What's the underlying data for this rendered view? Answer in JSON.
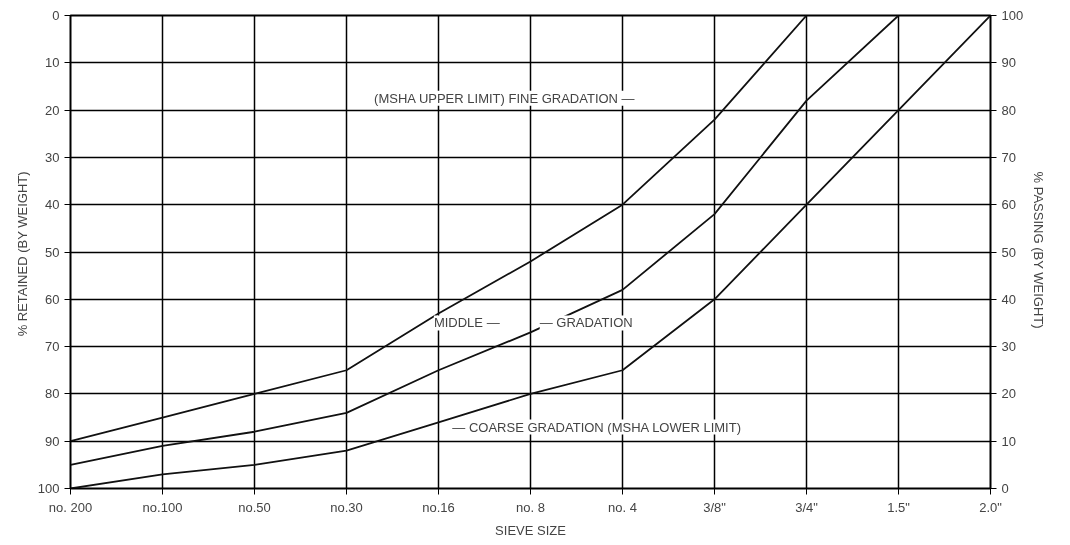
{
  "chart_data": {
    "type": "line",
    "xlabel": "SIEVE SIZE",
    "ylabel": "% RETAINED  (BY WEIGHT)",
    "y2label": "% PASSING  (BY WEIGHT)",
    "categories": [
      "no. 200",
      "no.100",
      "no.50",
      "no.30",
      "no.16",
      "no. 8",
      "no. 4",
      "3/8\"",
      "3/4\"",
      "1.5\"",
      "2.0\""
    ],
    "ylim": [
      100,
      0
    ],
    "yticks": [
      0,
      10,
      20,
      30,
      40,
      50,
      60,
      70,
      80,
      90,
      100
    ],
    "y2lim": [
      0,
      100
    ],
    "y2ticks": [
      0,
      10,
      20,
      30,
      40,
      50,
      60,
      70,
      80,
      90,
      100
    ],
    "series": [
      {
        "color": "#111111",
        "axis": "y2",
        "values": [
          10,
          15,
          20,
          25,
          37,
          48,
          60,
          78,
          100,
          null,
          null
        ]
      },
      {
        "color": "#111111",
        "axis": "y2",
        "values": [
          5,
          9,
          12,
          16,
          25,
          33,
          42,
          58,
          82,
          100,
          null
        ]
      },
      {
        "color": "#111111",
        "axis": "y2",
        "values": [
          0,
          3,
          5,
          8,
          14,
          20,
          25,
          40,
          60,
          80,
          100
        ]
      }
    ],
    "annotations": [
      "(MSHA UPPER LIMIT) FINE GRADATION —",
      "MIDDLE —",
      "— GRADATION",
      "— COARSE GRADATION  (MSHA LOWER LIMIT)"
    ],
    "grid": true,
    "marker": "none",
    "line_style": "solid"
  }
}
